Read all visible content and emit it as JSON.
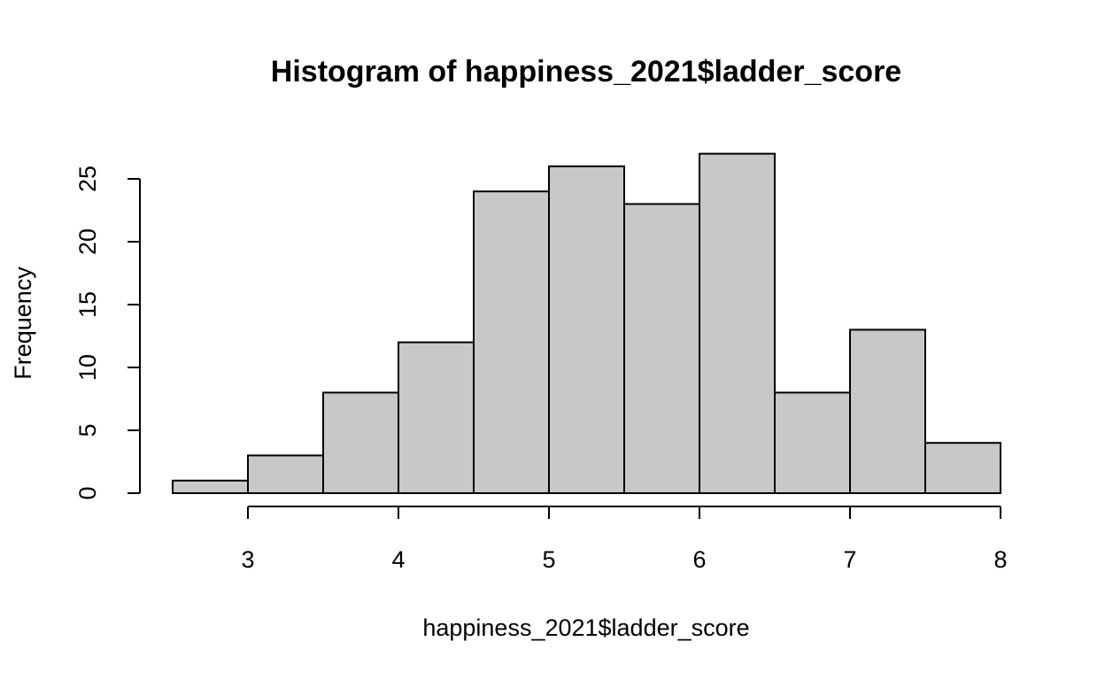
{
  "chart_data": {
    "type": "bar",
    "title": "Histogram of happiness_2021$ladder_score",
    "xlabel": "happiness_2021$ladder_score",
    "ylabel": "Frequency",
    "bins": [
      {
        "start": 2.5,
        "end": 3.0,
        "count": 1
      },
      {
        "start": 3.0,
        "end": 3.5,
        "count": 3
      },
      {
        "start": 3.5,
        "end": 4.0,
        "count": 8
      },
      {
        "start": 4.0,
        "end": 4.5,
        "count": 12
      },
      {
        "start": 4.5,
        "end": 5.0,
        "count": 24
      },
      {
        "start": 5.0,
        "end": 5.5,
        "count": 26
      },
      {
        "start": 5.5,
        "end": 6.0,
        "count": 23
      },
      {
        "start": 6.0,
        "end": 6.5,
        "count": 27
      },
      {
        "start": 6.5,
        "end": 7.0,
        "count": 8
      },
      {
        "start": 7.0,
        "end": 7.5,
        "count": 13
      },
      {
        "start": 7.5,
        "end": 8.0,
        "count": 4
      }
    ],
    "xticks": [
      3,
      4,
      5,
      6,
      7,
      8
    ],
    "yticks": [
      0,
      5,
      10,
      15,
      20,
      25
    ],
    "xlim": [
      2.5,
      8
    ],
    "ylim": [
      0,
      27
    ],
    "grid": false,
    "bar_color": "#c8c8c8",
    "edge_color": "#000000"
  }
}
